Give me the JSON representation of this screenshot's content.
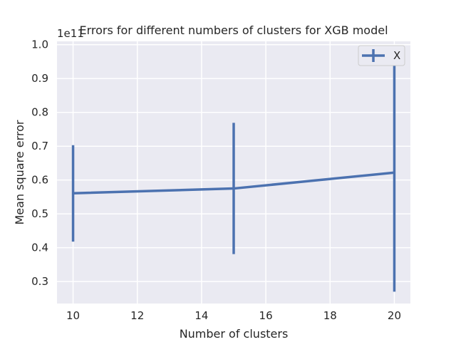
{
  "chart_data": {
    "type": "line",
    "title": "Errors for different numbers of clusters for XGB model",
    "xlabel": "Number of clusters",
    "ylabel": "Mean square error",
    "y_offset_text": "1e11",
    "xlim": [
      9.5,
      20.5
    ],
    "ylim": [
      0.235,
      1.01
    ],
    "x_ticks": [
      10,
      12,
      14,
      16,
      18,
      20
    ],
    "x_tick_labels": [
      "10",
      "12",
      "14",
      "16",
      "18",
      "20"
    ],
    "y_ticks": [
      0.3,
      0.4,
      0.5,
      0.6,
      0.7,
      0.8,
      0.9,
      1.0
    ],
    "y_tick_labels": [
      "0.3",
      "0.4",
      "0.5",
      "0.6",
      "0.7",
      "0.8",
      "0.9",
      "1.0"
    ],
    "grid": true,
    "legend_position": "upper right",
    "series": [
      {
        "name": "X",
        "color": "#4c72b0",
        "x": [
          10,
          15,
          20
        ],
        "y": [
          0.561,
          0.575,
          0.622
        ],
        "y_err_low": [
          0.418,
          0.381,
          0.27
        ],
        "y_err_high": [
          0.703,
          0.769,
          0.975
        ]
      }
    ]
  }
}
